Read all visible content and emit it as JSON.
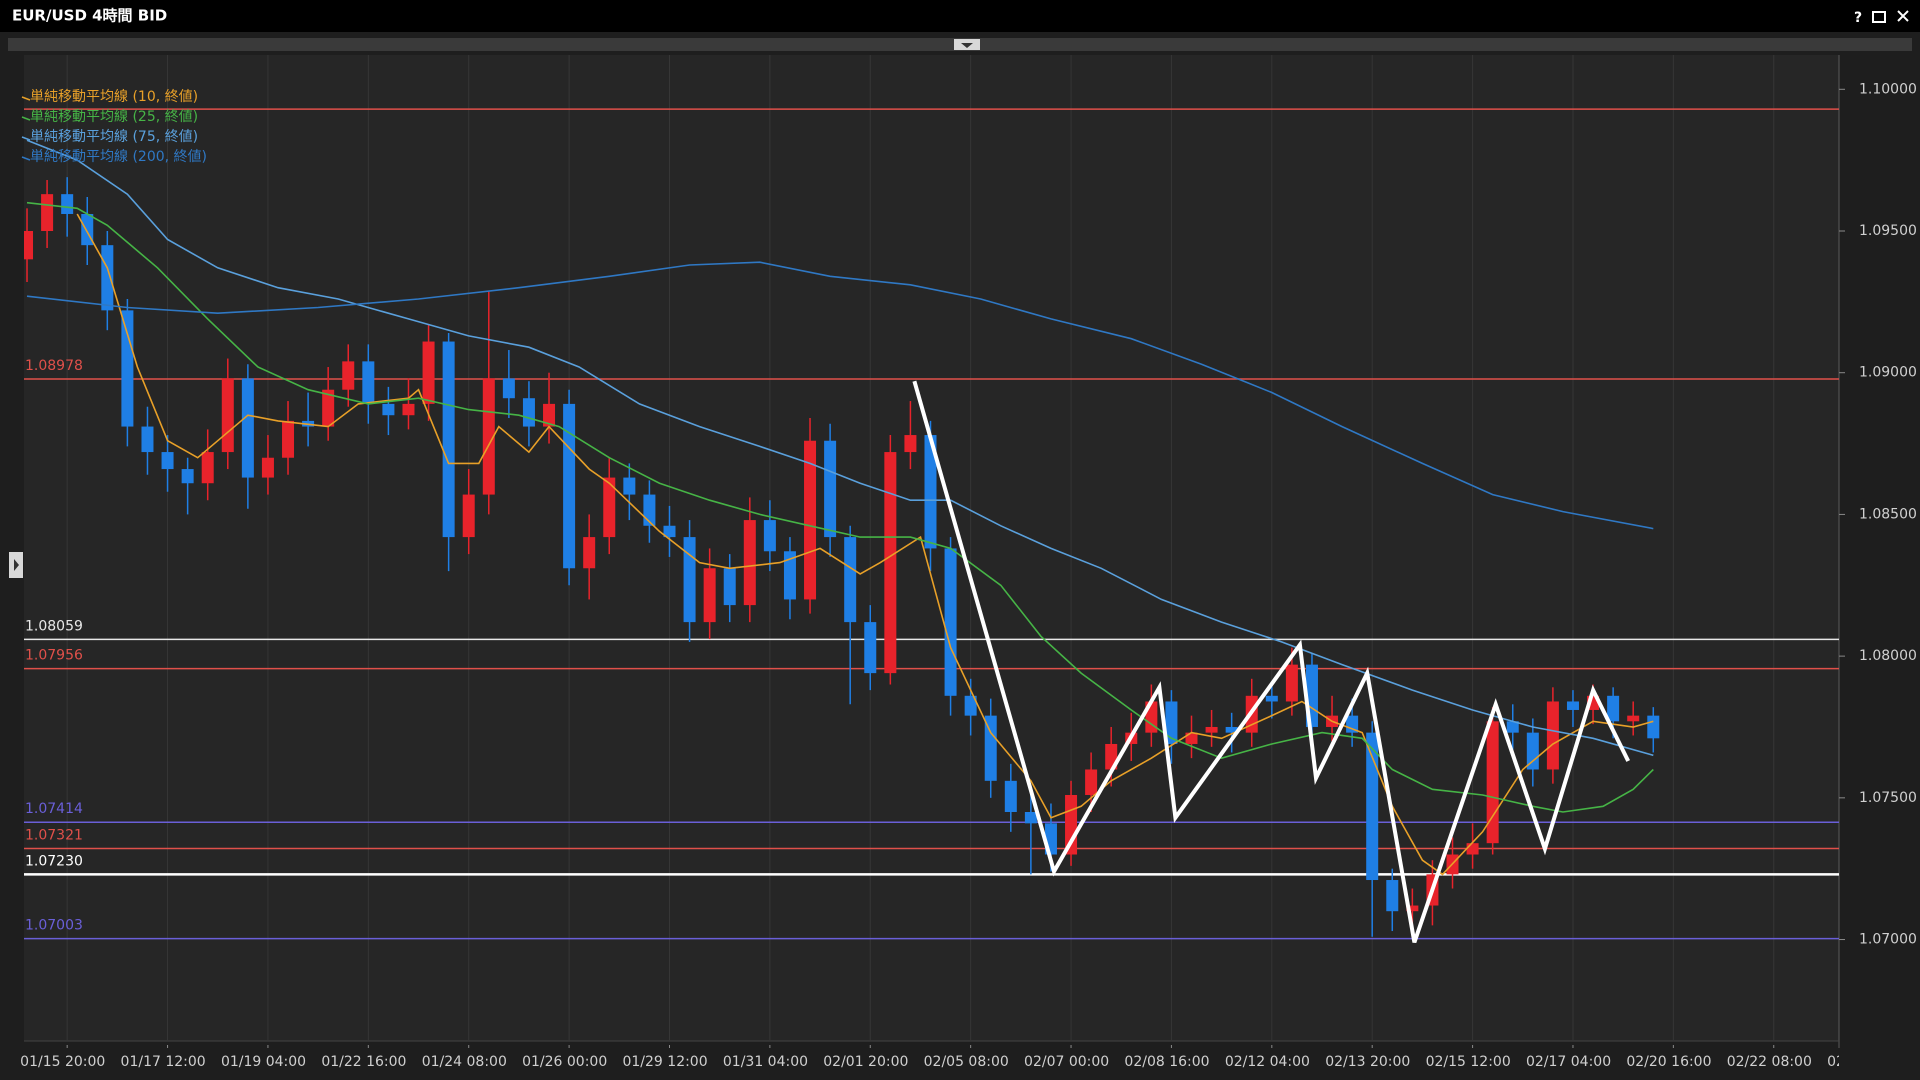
{
  "chart_data": {
    "type": "candlestick",
    "title": "EUR/USD 4時間 BID",
    "help": "?",
    "up_color": "#e8232b",
    "down_color": "#1f7fe5",
    "xlim": [
      -0.3,
      180.5
    ],
    "ylim": [
      1.06642,
      1.10121
    ],
    "grid": "x",
    "legend": "top-left",
    "yticks": [
      {
        "value": 1.07,
        "label": "1.07000"
      },
      {
        "value": 1.075,
        "label": "1.07500"
      },
      {
        "value": 1.08,
        "label": "1.08000"
      },
      {
        "value": 1.085,
        "label": "1.08500"
      },
      {
        "value": 1.09,
        "label": "1.09000"
      },
      {
        "value": 1.095,
        "label": "1.09500"
      },
      {
        "value": 1.1,
        "label": "1.10000"
      }
    ],
    "xticks": [
      {
        "value": 4,
        "label": "01/15 20:00"
      },
      {
        "value": 14,
        "label": "01/17 12:00"
      },
      {
        "value": 24,
        "label": "01/19 04:00"
      },
      {
        "value": 34,
        "label": "01/22 16:00"
      },
      {
        "value": 44,
        "label": "01/24 08:00"
      },
      {
        "value": 54,
        "label": "01/26 00:00"
      },
      {
        "value": 64,
        "label": "01/29 12:00"
      },
      {
        "value": 74,
        "label": "01/31 04:00"
      },
      {
        "value": 84,
        "label": "02/01 20:00"
      },
      {
        "value": 94,
        "label": "02/05 08:00"
      },
      {
        "value": 104,
        "label": "02/07 00:00"
      },
      {
        "value": 114,
        "label": "02/08 16:00"
      },
      {
        "value": 124,
        "label": "02/12 04:00"
      },
      {
        "value": 134,
        "label": "02/13 20:00"
      },
      {
        "value": 144,
        "label": "02/15 12:00"
      },
      {
        "value": 154,
        "label": "02/17 04:00"
      },
      {
        "value": 164,
        "label": "02/20 16:00"
      },
      {
        "value": 174,
        "label": "02/22 08:00"
      },
      {
        "value": 184,
        "label": "02"
      }
    ],
    "candles": {
      "x": [
        0,
        2,
        4,
        6,
        8,
        10,
        12,
        14,
        16,
        18,
        20,
        22,
        24,
        26,
        28,
        30,
        32,
        34,
        36,
        38,
        40,
        42,
        44,
        46,
        48,
        50,
        52,
        54,
        56,
        58,
        60,
        62,
        64,
        66,
        68,
        70,
        72,
        74,
        76,
        78,
        80,
        82,
        84,
        86,
        88,
        90,
        92,
        94,
        96,
        98,
        100,
        102,
        104,
        106,
        108,
        110,
        112,
        114,
        116,
        118,
        120,
        122,
        124,
        126,
        128,
        130,
        132,
        134,
        136,
        138,
        140,
        142,
        144,
        146,
        148,
        150,
        152,
        154,
        156,
        158,
        160,
        162
      ],
      "open": [
        1.094,
        1.095,
        1.0963,
        1.0956,
        1.0945,
        1.0922,
        1.0881,
        1.0872,
        1.0866,
        1.0861,
        1.0872,
        1.0898,
        1.0863,
        1.087,
        1.0883,
        1.0881,
        1.0894,
        1.0904,
        1.0889,
        1.0885,
        1.0889,
        1.0911,
        1.0842,
        1.0857,
        1.0898,
        1.0891,
        1.0881,
        1.0889,
        1.0831,
        1.0842,
        1.0863,
        1.0857,
        1.0846,
        1.0842,
        1.0812,
        1.0831,
        1.0818,
        1.0848,
        1.0837,
        1.082,
        1.0876,
        1.0842,
        1.0812,
        1.0794,
        1.0872,
        1.0878,
        1.0838,
        1.0786,
        1.0779,
        1.0756,
        1.0745,
        1.0741,
        1.073,
        1.0751,
        1.076,
        1.0769,
        1.0773,
        1.0784,
        1.0769,
        1.0773,
        1.0775,
        1.0773,
        1.0786,
        1.0784,
        1.0797,
        1.0775,
        1.0779,
        1.0773,
        1.0721,
        1.071,
        1.0712,
        1.0723,
        1.073,
        1.0734,
        1.0777,
        1.0773,
        1.076,
        1.0784,
        1.0781,
        1.0786,
        1.0777,
        1.0779
      ],
      "high": [
        1.0958,
        1.0968,
        1.0969,
        1.0962,
        1.095,
        1.0926,
        1.0888,
        1.0878,
        1.087,
        1.088,
        1.0905,
        1.0903,
        1.0878,
        1.089,
        1.0893,
        1.0902,
        1.091,
        1.091,
        1.0895,
        1.0898,
        1.0917,
        1.0914,
        1.0866,
        1.0929,
        1.0908,
        1.0897,
        1.09,
        1.0894,
        1.085,
        1.087,
        1.0868,
        1.0862,
        1.0853,
        1.0848,
        1.0838,
        1.0836,
        1.0856,
        1.0855,
        1.0842,
        1.0884,
        1.0882,
        1.0846,
        1.0818,
        1.0878,
        1.089,
        1.0883,
        1.0842,
        1.0792,
        1.0785,
        1.0762,
        1.0752,
        1.0748,
        1.0756,
        1.0766,
        1.0775,
        1.078,
        1.079,
        1.0788,
        1.0779,
        1.0781,
        1.078,
        1.0792,
        1.0791,
        1.0803,
        1.0801,
        1.0786,
        1.0785,
        1.0777,
        1.0725,
        1.0718,
        1.0728,
        1.0736,
        1.0741,
        1.0782,
        1.0783,
        1.0778,
        1.0789,
        1.0788,
        1.079,
        1.0789,
        1.0784,
        1.0782
      ],
      "low": [
        1.0932,
        1.0944,
        1.0948,
        1.0938,
        1.0915,
        1.0874,
        1.0864,
        1.0858,
        1.085,
        1.0855,
        1.0866,
        1.0852,
        1.0857,
        1.0864,
        1.0874,
        1.0876,
        1.0888,
        1.0882,
        1.0878,
        1.088,
        1.0883,
        1.083,
        1.0836,
        1.085,
        1.0884,
        1.0874,
        1.0875,
        1.0825,
        1.082,
        1.0836,
        1.0848,
        1.084,
        1.0835,
        1.0805,
        1.0806,
        1.0812,
        1.0812,
        1.083,
        1.0813,
        1.0815,
        1.0835,
        1.0783,
        1.0788,
        1.079,
        1.0866,
        1.083,
        1.0779,
        1.0772,
        1.075,
        1.0738,
        1.0723,
        1.0724,
        1.0726,
        1.0745,
        1.0754,
        1.0763,
        1.0768,
        1.0762,
        1.0764,
        1.0768,
        1.0766,
        1.0768,
        1.0778,
        1.0779,
        1.0769,
        1.077,
        1.0768,
        1.0701,
        1.0703,
        1.0702,
        1.0705,
        1.0718,
        1.0725,
        1.073,
        1.0767,
        1.0754,
        1.0755,
        1.0775,
        1.0776,
        1.0771,
        1.0772,
        1.0766
      ],
      "close": [
        1.095,
        1.0963,
        1.0956,
        1.0945,
        1.0922,
        1.0881,
        1.0872,
        1.0866,
        1.0861,
        1.0872,
        1.0898,
        1.0863,
        1.087,
        1.0883,
        1.0881,
        1.0894,
        1.0904,
        1.0889,
        1.0885,
        1.0889,
        1.0911,
        1.0842,
        1.0857,
        1.0898,
        1.0891,
        1.0881,
        1.0889,
        1.0831,
        1.0842,
        1.0863,
        1.0857,
        1.0846,
        1.0842,
        1.0812,
        1.0831,
        1.0818,
        1.0848,
        1.0837,
        1.082,
        1.0876,
        1.0842,
        1.0812,
        1.0794,
        1.0872,
        1.0878,
        1.0838,
        1.0786,
        1.0779,
        1.0756,
        1.0745,
        1.0741,
        1.073,
        1.0751,
        1.076,
        1.0769,
        1.0773,
        1.0784,
        1.0769,
        1.0773,
        1.0775,
        1.0773,
        1.0786,
        1.0784,
        1.0797,
        1.0775,
        1.0779,
        1.0773,
        1.0721,
        1.071,
        1.0712,
        1.0723,
        1.073,
        1.0734,
        1.0777,
        1.0773,
        1.076,
        1.0784,
        1.0781,
        1.0786,
        1.0777,
        1.0779,
        1.0771
      ]
    },
    "series": [
      {
        "name": "単純移動平均線 (10, 終値)",
        "color": "#e8a028",
        "x": [
          5,
          8,
          11,
          14,
          17,
          22,
          25,
          30,
          33,
          38,
          39,
          42,
          45,
          47,
          50,
          52,
          56,
          58,
          63,
          67,
          70,
          75,
          79,
          83,
          85,
          89,
          92,
          96,
          100,
          102,
          105,
          108,
          112,
          116,
          119,
          124,
          127,
          130,
          133,
          136,
          139,
          141,
          145,
          149,
          152,
          156,
          160,
          162
        ],
        "values": [
          1.0956,
          1.0937,
          1.0902,
          1.0876,
          1.087,
          1.0885,
          1.0883,
          1.0881,
          1.0889,
          1.0891,
          1.0894,
          1.0868,
          1.0868,
          1.0881,
          1.0872,
          1.0881,
          1.0866,
          1.0861,
          1.0844,
          1.0833,
          1.0831,
          1.0833,
          1.0838,
          1.0829,
          1.0833,
          1.0842,
          1.0803,
          1.0773,
          1.0756,
          1.0743,
          1.0747,
          1.0756,
          1.0764,
          1.0773,
          1.0771,
          1.0779,
          1.0784,
          1.0777,
          1.0773,
          1.0747,
          1.0728,
          1.0723,
          1.0738,
          1.076,
          1.0769,
          1.0777,
          1.0775,
          1.0777
        ]
      },
      {
        "name": "単純移動平均線 (25, 終値)",
        "color": "#46b446",
        "x": [
          0,
          5,
          8,
          13,
          18,
          23,
          28,
          34,
          39,
          44,
          49,
          53,
          58,
          63,
          68,
          73,
          78,
          83,
          88,
          92,
          97,
          101,
          105,
          110,
          114,
          119,
          124,
          129,
          133,
          136,
          140,
          145,
          150,
          153,
          157,
          160,
          162
        ],
        "values": [
          1.096,
          1.0958,
          1.0952,
          1.0937,
          1.0919,
          1.0902,
          1.0894,
          1.0889,
          1.0891,
          1.0887,
          1.0885,
          1.0881,
          1.087,
          1.0861,
          1.0855,
          1.085,
          1.0846,
          1.0842,
          1.0842,
          1.0838,
          1.0825,
          1.0807,
          1.0794,
          1.0781,
          1.0771,
          1.0764,
          1.0769,
          1.0773,
          1.0771,
          1.076,
          1.0753,
          1.0751,
          1.0747,
          1.0745,
          1.0747,
          1.0753,
          1.076
        ]
      },
      {
        "name": "単純移動平均線 (75, 終値)",
        "color": "#5aa0dc",
        "x": [
          0,
          5,
          10,
          14,
          19,
          25,
          31,
          38,
          44,
          50,
          55,
          61,
          67,
          73,
          78,
          83,
          88,
          92,
          97,
          102,
          107,
          113,
          119,
          125,
          131,
          138,
          144,
          150,
          156,
          162
        ],
        "values": [
          1.0982,
          1.0975,
          1.0963,
          1.0947,
          1.0937,
          1.093,
          1.0926,
          1.0919,
          1.0913,
          1.0909,
          1.0902,
          1.0889,
          1.0881,
          1.0874,
          1.0868,
          1.0861,
          1.0855,
          1.0855,
          1.0846,
          1.0838,
          1.0831,
          1.082,
          1.0812,
          1.0805,
          1.0797,
          1.0788,
          1.0781,
          1.0775,
          1.0771,
          1.0765
        ]
      },
      {
        "name": "単純移動平均線 (200, 終値)",
        "color": "#2f78c4",
        "x": [
          0,
          10,
          19,
          29,
          39,
          49,
          58,
          66,
          73,
          80,
          88,
          95,
          102,
          110,
          117,
          124,
          131,
          139,
          146,
          153,
          162
        ],
        "values": [
          1.0927,
          1.0923,
          1.0921,
          1.0923,
          1.0926,
          1.093,
          1.0934,
          1.0938,
          1.0939,
          1.0934,
          1.0931,
          1.0926,
          1.0919,
          1.0912,
          1.0903,
          1.0893,
          1.0881,
          1.0868,
          1.0857,
          1.0851,
          1.0845
        ]
      }
    ],
    "levels": [
      {
        "value": 1.0993,
        "color": "#e0504a"
      },
      {
        "value": 1.08978,
        "label": "1.08978",
        "color": "#e0504a"
      },
      {
        "value": 1.08059,
        "label": "1.08059",
        "color": "#e8e8e8"
      },
      {
        "value": 1.07956,
        "label": "1.07956",
        "color": "#e0504a"
      },
      {
        "value": 1.07414,
        "label": "1.07414",
        "color": "#6a5fd8"
      },
      {
        "value": 1.07321,
        "label": "1.07321",
        "color": "#e0504a"
      },
      {
        "value": 1.0723,
        "label": "1.07230",
        "color": "#ffffff"
      },
      {
        "value": 1.07003,
        "label": "1.07003",
        "color": "#6a5fd8"
      }
    ],
    "zigzag": {
      "color": "#ffffff",
      "x": [
        88.4,
        102.3,
        112.8,
        114.4,
        126.8,
        128.4,
        133.5,
        138.2,
        146.3,
        151.2,
        156.0,
        159.5
      ],
      "values": [
        1.0897,
        1.0724,
        1.0789,
        1.0743,
        1.0804,
        1.0757,
        1.0794,
        1.0699,
        1.0783,
        1.0732,
        1.0788,
        1.0763
      ]
    }
  }
}
